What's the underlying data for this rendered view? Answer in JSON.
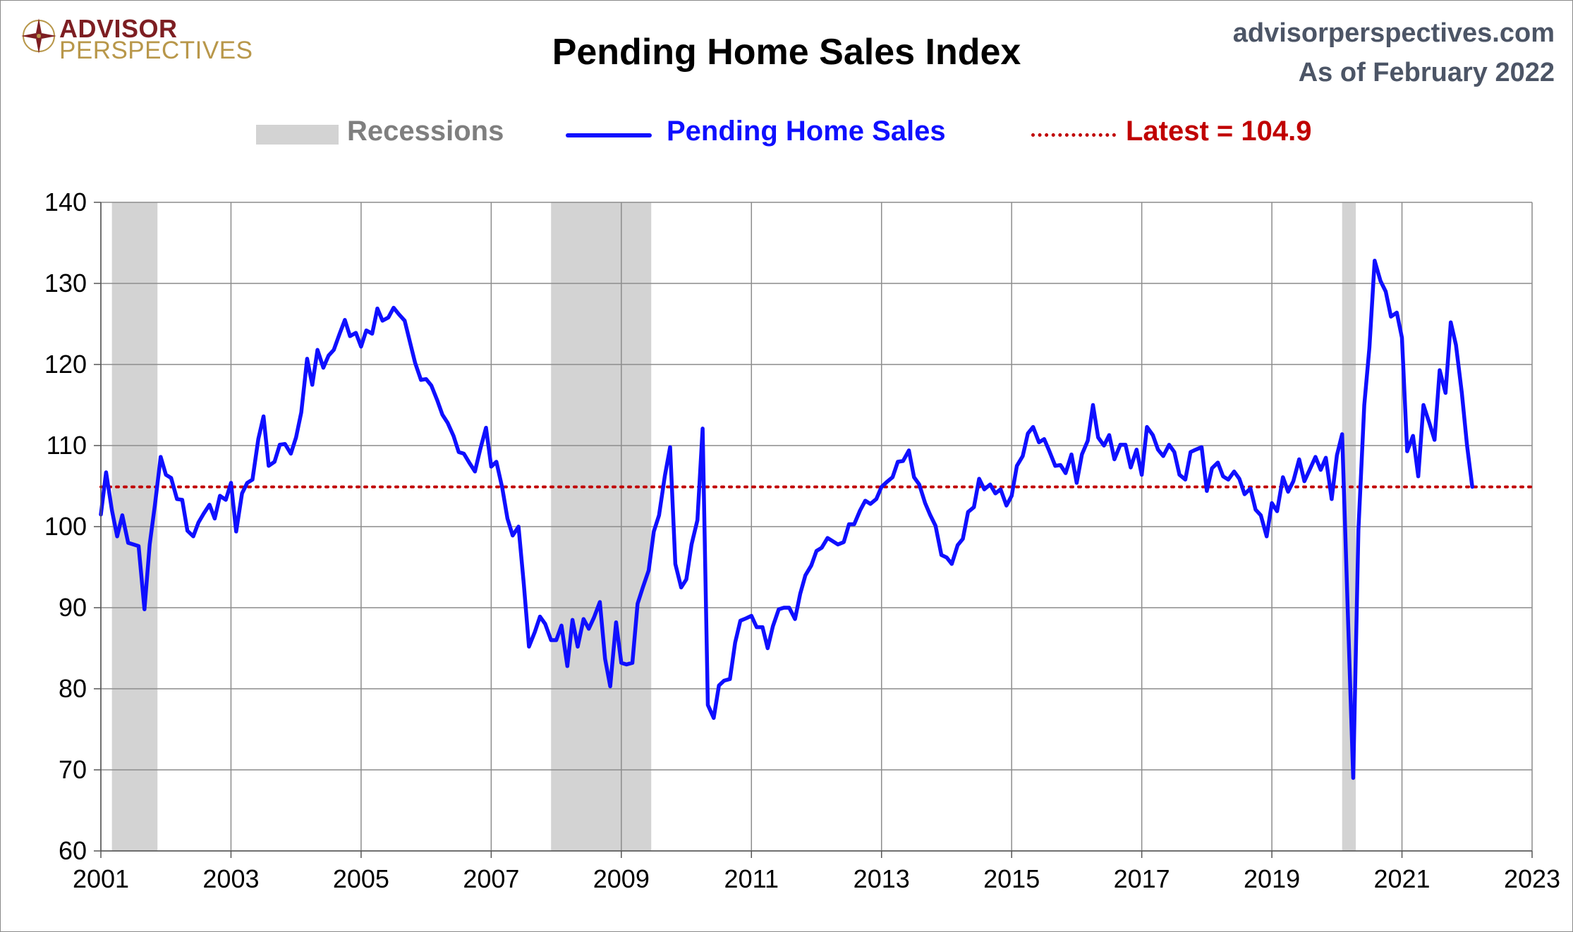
{
  "header": {
    "logo_top": "ADVISOR",
    "logo_bottom": "PERSPECTIVES",
    "title": "Pending Home Sales Index",
    "site": "advisorperspectives.com",
    "as_of": "As of February 2022"
  },
  "legend": {
    "recessions": "Recessions",
    "series": "Pending Home Sales",
    "latest": "Latest = 104.9"
  },
  "colors": {
    "series": "#0f0fff",
    "latest": "#c00000",
    "recession": "#d3d3d3",
    "grid": "#8c8c8c"
  },
  "chart_data": {
    "type": "line",
    "title": "Pending Home Sales Index",
    "xlim": [
      2001,
      2023
    ],
    "ylim": [
      60,
      140
    ],
    "x_ticks": [
      "2001",
      "2003",
      "2005",
      "2007",
      "2009",
      "2011",
      "2013",
      "2015",
      "2017",
      "2019",
      "2021",
      "2023"
    ],
    "y_ticks": [
      "60",
      "70",
      "80",
      "90",
      "100",
      "110",
      "120",
      "130",
      "140"
    ],
    "grid": true,
    "legend_position": "top",
    "recessions": [
      {
        "start": 2001.17,
        "end": 2001.87
      },
      {
        "start": 2007.92,
        "end": 2009.46
      },
      {
        "start": 2020.08,
        "end": 2020.29
      }
    ],
    "latest": {
      "label": "Latest = 104.9",
      "value": 104.9
    },
    "series": [
      {
        "name": "Pending Home Sales",
        "x": [
          2001.0,
          2001.08,
          2001.17,
          2001.25,
          2001.33,
          2001.42,
          2001.5,
          2001.58,
          2001.67,
          2001.75,
          2001.83,
          2001.92,
          2002.0,
          2002.08,
          2002.17,
          2002.25,
          2002.33,
          2002.42,
          2002.5,
          2002.58,
          2002.67,
          2002.75,
          2002.83,
          2002.92,
          2003.0,
          2003.08,
          2003.17,
          2003.25,
          2003.33,
          2003.42,
          2003.5,
          2003.58,
          2003.67,
          2003.75,
          2003.83,
          2003.92,
          2004.0,
          2004.08,
          2004.17,
          2004.25,
          2004.33,
          2004.42,
          2004.5,
          2004.58,
          2004.67,
          2004.75,
          2004.83,
          2004.92,
          2005.0,
          2005.08,
          2005.17,
          2005.25,
          2005.33,
          2005.42,
          2005.5,
          2005.58,
          2005.67,
          2005.75,
          2005.83,
          2005.92,
          2006.0,
          2006.08,
          2006.17,
          2006.25,
          2006.33,
          2006.42,
          2006.5,
          2006.58,
          2006.67,
          2006.75,
          2006.83,
          2006.92,
          2007.0,
          2007.08,
          2007.17,
          2007.25,
          2007.33,
          2007.42,
          2007.5,
          2007.58,
          2007.67,
          2007.75,
          2007.83,
          2007.92,
          2008.0,
          2008.08,
          2008.17,
          2008.25,
          2008.33,
          2008.42,
          2008.5,
          2008.58,
          2008.67,
          2008.75,
          2008.83,
          2008.92,
          2009.0,
          2009.08,
          2009.17,
          2009.25,
          2009.33,
          2009.42,
          2009.5,
          2009.58,
          2009.67,
          2009.75,
          2009.83,
          2009.92,
          2010.0,
          2010.08,
          2010.17,
          2010.25,
          2010.33,
          2010.42,
          2010.5,
          2010.58,
          2010.67,
          2010.75,
          2010.83,
          2010.92,
          2011.0,
          2011.08,
          2011.17,
          2011.25,
          2011.33,
          2011.42,
          2011.5,
          2011.58,
          2011.67,
          2011.75,
          2011.83,
          2011.92,
          2012.0,
          2012.08,
          2012.17,
          2012.25,
          2012.33,
          2012.42,
          2012.5,
          2012.58,
          2012.67,
          2012.75,
          2012.83,
          2012.92,
          2013.0,
          2013.08,
          2013.17,
          2013.25,
          2013.33,
          2013.42,
          2013.5,
          2013.58,
          2013.67,
          2013.75,
          2013.83,
          2013.92,
          2014.0,
          2014.08,
          2014.17,
          2014.25,
          2014.33,
          2014.42,
          2014.5,
          2014.58,
          2014.67,
          2014.75,
          2014.83,
          2014.92,
          2015.0,
          2015.08,
          2015.17,
          2015.25,
          2015.33,
          2015.42,
          2015.5,
          2015.58,
          2015.67,
          2015.75,
          2015.83,
          2015.92,
          2016.0,
          2016.08,
          2016.17,
          2016.25,
          2016.33,
          2016.42,
          2016.5,
          2016.58,
          2016.67,
          2016.75,
          2016.83,
          2016.92,
          2017.0,
          2017.08,
          2017.17,
          2017.25,
          2017.33,
          2017.42,
          2017.5,
          2017.58,
          2017.67,
          2017.75,
          2017.83,
          2017.92,
          2018.0,
          2018.08,
          2018.17,
          2018.25,
          2018.33,
          2018.42,
          2018.5,
          2018.58,
          2018.67,
          2018.75,
          2018.83,
          2018.92,
          2019.0,
          2019.08,
          2019.17,
          2019.25,
          2019.33,
          2019.42,
          2019.5,
          2019.58,
          2019.67,
          2019.75,
          2019.83,
          2019.92,
          2020.0,
          2020.08,
          2020.17,
          2020.25,
          2020.33,
          2020.42,
          2020.5,
          2020.58,
          2020.67,
          2020.75,
          2020.83,
          2020.92,
          2021.0,
          2021.08,
          2021.17,
          2021.25,
          2021.33,
          2021.42,
          2021.5,
          2021.58,
          2021.67,
          2021.75,
          2021.83,
          2021.92,
          2022.0,
          2022.08
        ],
        "values": [
          101.5,
          106.7,
          102.0,
          98.8,
          101.4,
          98.0,
          97.8,
          97.6,
          89.8,
          97.8,
          102.6,
          108.6,
          106.4,
          106.0,
          103.4,
          103.3,
          99.5,
          98.8,
          100.5,
          101.6,
          102.7,
          101.0,
          103.8,
          103.3,
          105.4,
          99.4,
          104.1,
          105.4,
          105.8,
          110.8,
          113.6,
          107.5,
          108.0,
          110.1,
          110.2,
          109.0,
          111.0,
          114.1,
          120.7,
          117.5,
          121.8,
          119.6,
          121.1,
          121.8,
          123.8,
          125.5,
          123.5,
          123.9,
          122.2,
          124.2,
          123.8,
          126.9,
          125.4,
          125.8,
          127.0,
          126.2,
          125.4,
          122.8,
          120.2,
          118.1,
          118.2,
          117.4,
          115.6,
          113.8,
          112.8,
          111.2,
          109.2,
          109.0,
          107.8,
          106.8,
          109.5,
          112.2,
          107.4,
          108.0,
          104.8,
          101.0,
          98.9,
          100.0,
          93.0,
          85.2,
          87.0,
          88.9,
          88.0,
          86.0,
          86.0,
          87.8,
          82.8,
          88.5,
          85.2,
          88.6,
          87.4,
          88.8,
          90.7,
          83.7,
          80.3,
          88.2,
          83.2,
          83.0,
          83.2,
          90.5,
          92.5,
          94.6,
          99.4,
          101.4,
          106.3,
          109.8,
          95.4,
          92.5,
          93.5,
          97.8,
          100.8,
          112.1,
          78.0,
          76.4,
          80.4,
          81.0,
          81.2,
          85.7,
          88.4,
          88.7,
          89.0,
          87.6,
          87.6,
          85.0,
          87.7,
          89.8,
          90.0,
          90.0,
          88.6,
          91.7,
          94.0,
          95.2,
          97.0,
          97.4,
          98.6,
          98.2,
          97.8,
          98.1,
          100.3,
          100.3,
          102.0,
          103.2,
          102.8,
          103.4,
          104.9,
          105.5,
          106.1,
          108.0,
          108.1,
          109.4,
          106.1,
          105.2,
          102.9,
          101.4,
          100.1,
          96.5,
          96.2,
          95.4,
          97.7,
          98.5,
          101.8,
          102.4,
          105.9,
          104.6,
          105.2,
          104.1,
          104.6,
          102.6,
          103.8,
          107.5,
          108.7,
          111.5,
          112.3,
          110.4,
          110.8,
          109.3,
          107.5,
          107.6,
          106.6,
          108.9,
          105.4,
          108.9,
          110.6,
          115.0,
          111.0,
          110.0,
          111.3,
          108.3,
          110.1,
          110.1,
          107.3,
          109.5,
          106.4,
          112.3,
          111.3,
          109.5,
          108.7,
          110.1,
          109.2,
          106.4,
          105.8,
          109.2,
          109.5,
          109.8,
          104.4,
          107.2,
          107.9,
          106.2,
          105.8,
          106.8,
          105.9,
          104.0,
          104.7,
          102.1,
          101.4,
          98.8,
          102.9,
          101.9,
          106.1,
          104.3,
          105.6,
          108.3,
          105.6,
          107.0,
          108.6,
          107.0,
          108.5,
          103.4,
          108.8,
          111.4,
          88.8,
          69.0,
          99.6,
          115.0,
          122.1,
          132.8,
          130.3,
          129.0,
          125.9,
          126.4,
          123.3,
          109.3,
          111.2,
          106.2,
          115.0,
          112.8,
          110.7,
          119.3,
          116.5,
          125.2,
          122.4,
          116.5,
          110.0,
          104.9
        ]
      }
    ]
  }
}
